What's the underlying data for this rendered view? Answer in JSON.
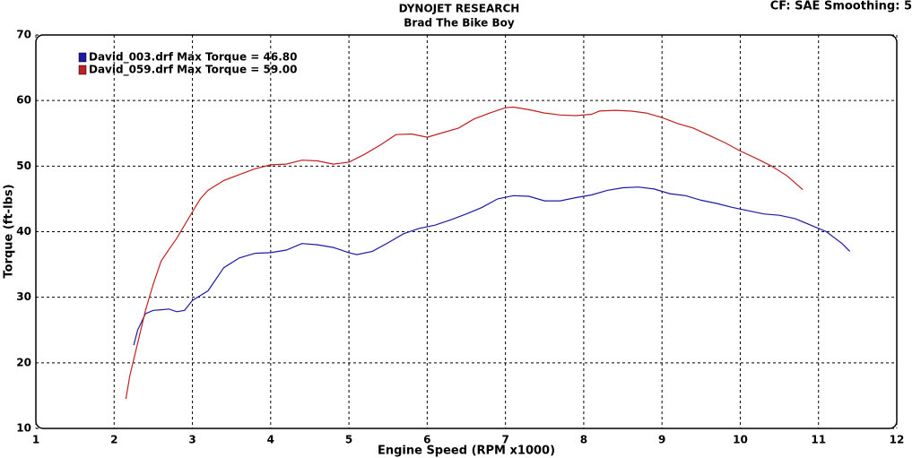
{
  "chart_data": {
    "type": "line",
    "title": "DYNOJET RESEARCH",
    "subtitle": "Brad The Bike Boy",
    "annotation": "CF: SAE  Smoothing: 5",
    "xlabel": "Engine Speed (RPM x1000)",
    "ylabel": "Torque (ft-lbs)",
    "xlim": [
      1,
      12
    ],
    "xticks": [
      1,
      2,
      3,
      4,
      5,
      6,
      7,
      8,
      9,
      10,
      11,
      12
    ],
    "ylim": [
      10,
      70
    ],
    "yticks": [
      10,
      20,
      30,
      40,
      50,
      60,
      70
    ],
    "grid": true,
    "legend": "upper left",
    "series": [
      {
        "name": "David_003.drf Max Torque = 46.80",
        "color": "#1a1aa6",
        "x": [
          2.25,
          2.3,
          2.4,
          2.5,
          2.6,
          2.7,
          2.8,
          2.9,
          3.0,
          3.2,
          3.4,
          3.6,
          3.8,
          4.0,
          4.2,
          4.4,
          4.6,
          4.8,
          5.0,
          5.1,
          5.3,
          5.5,
          5.7,
          5.9,
          6.1,
          6.3,
          6.5,
          6.7,
          6.9,
          7.1,
          7.3,
          7.5,
          7.7,
          7.9,
          8.1,
          8.3,
          8.5,
          8.7,
          8.9,
          9.1,
          9.3,
          9.5,
          9.7,
          9.9,
          10.1,
          10.3,
          10.5,
          10.7,
          10.9,
          11.1,
          11.3,
          11.4
        ],
        "values": [
          22.7,
          25,
          27.5,
          28,
          28.1,
          28.2,
          27.8,
          28,
          29.5,
          31,
          34.5,
          36,
          36.7,
          36.8,
          37.2,
          38.2,
          38,
          37.6,
          36.8,
          36.5,
          37,
          38.3,
          39.7,
          40.5,
          41,
          41.8,
          42.7,
          43.7,
          45,
          45.5,
          45.4,
          44.7,
          44.7,
          45.2,
          45.6,
          46.3,
          46.7,
          46.8,
          46.5,
          45.8,
          45.5,
          44.8,
          44.3,
          43.7,
          43.2,
          42.7,
          42.5,
          42,
          41,
          40,
          38.2,
          37
        ]
      },
      {
        "name": "David_059.drf Max Torque = 59.00",
        "color": "#c02020",
        "x": [
          2.15,
          2.2,
          2.3,
          2.4,
          2.5,
          2.6,
          2.7,
          2.8,
          2.9,
          3.0,
          3.1,
          3.2,
          3.4,
          3.6,
          3.8,
          4.0,
          4.2,
          4.4,
          4.6,
          4.8,
          5.0,
          5.2,
          5.4,
          5.6,
          5.8,
          6.0,
          6.2,
          6.4,
          6.6,
          6.8,
          7.0,
          7.1,
          7.3,
          7.5,
          7.7,
          7.9,
          8.1,
          8.2,
          8.4,
          8.6,
          8.8,
          9.0,
          9.2,
          9.4,
          9.6,
          9.8,
          10.0,
          10.2,
          10.4,
          10.6,
          10.8
        ],
        "values": [
          14.5,
          18,
          23,
          28,
          32,
          35.5,
          37.3,
          39,
          41,
          43,
          45,
          46.3,
          47.8,
          48.7,
          49.6,
          50.2,
          50.3,
          50.9,
          50.8,
          50.3,
          50.6,
          51.8,
          53.2,
          54.8,
          54.9,
          54.4,
          55.1,
          55.8,
          57.2,
          58.1,
          58.9,
          59.0,
          58.6,
          58.1,
          57.8,
          57.7,
          57.9,
          58.4,
          58.5,
          58.4,
          58.1,
          57.4,
          56.5,
          55.8,
          54.7,
          53.6,
          52.3,
          51.2,
          50,
          48.5,
          46.4
        ]
      }
    ]
  }
}
